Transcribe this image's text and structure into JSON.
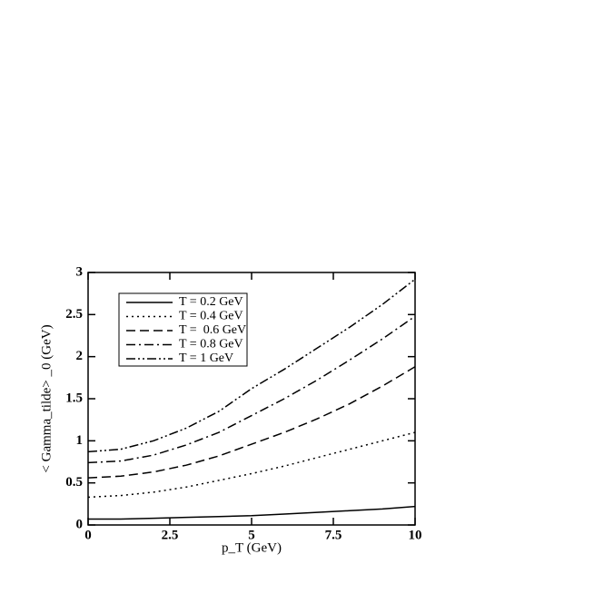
{
  "chart_data": {
    "type": "line",
    "x_label": "p_T (GeV)",
    "y_label": "< Gamma_tilde> _0 (GeV)",
    "x": [
      0,
      1,
      2,
      3,
      4,
      5,
      6,
      7,
      8,
      9,
      10
    ],
    "series": [
      {
        "name": "T = 0.2 GeV",
        "color": "#000000",
        "dash": "none",
        "values": [
          0.07,
          0.07,
          0.08,
          0.09,
          0.1,
          0.11,
          0.13,
          0.15,
          0.17,
          0.19,
          0.22
        ]
      },
      {
        "name": "T = 0.4 GeV",
        "color": "#000000",
        "dash": "2 4",
        "values": [
          0.33,
          0.35,
          0.39,
          0.45,
          0.53,
          0.61,
          0.7,
          0.8,
          0.9,
          1.0,
          1.1
        ]
      },
      {
        "name": "T =  0.6 GeV",
        "color": "#000000",
        "dash": "10 5",
        "values": [
          0.56,
          0.58,
          0.63,
          0.71,
          0.82,
          0.96,
          1.1,
          1.26,
          1.44,
          1.65,
          1.88
        ]
      },
      {
        "name": "T = 0.8 GeV",
        "color": "#000000",
        "dash": "10 4 2 4",
        "values": [
          0.74,
          0.76,
          0.83,
          0.95,
          1.1,
          1.3,
          1.5,
          1.72,
          1.96,
          2.21,
          2.48
        ]
      },
      {
        "name": "T = 1 GeV",
        "color": "#000000",
        "dash": "10 3 2 3 2 3",
        "values": [
          0.87,
          0.9,
          1.0,
          1.15,
          1.35,
          1.62,
          1.85,
          2.1,
          2.35,
          2.62,
          2.92
        ]
      }
    ],
    "xlim": [
      0,
      10
    ],
    "xticks": [
      0,
      2.5,
      5,
      7.5,
      10
    ],
    "ylim": [
      0,
      3
    ],
    "yticks": [
      0,
      0.5,
      1,
      1.5,
      2,
      2.5,
      3
    ],
    "legend": "upper-left"
  }
}
